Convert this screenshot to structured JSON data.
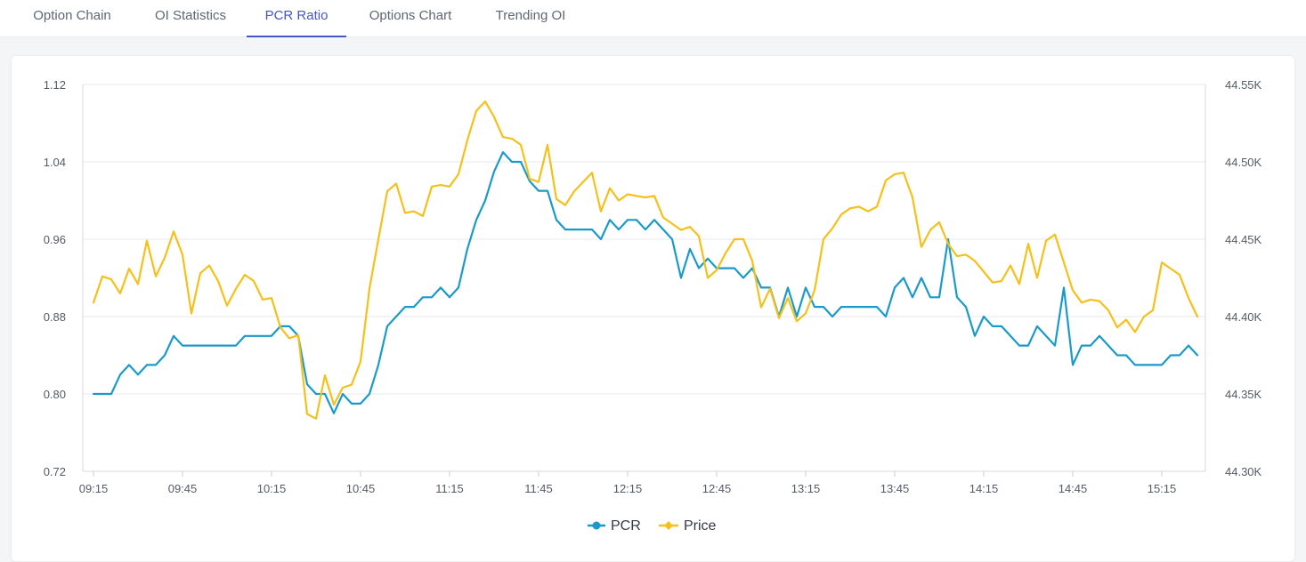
{
  "tabs": [
    {
      "label": "Option Chain",
      "active": false
    },
    {
      "label": "OI Statistics",
      "active": false
    },
    {
      "label": "PCR Ratio",
      "active": true
    },
    {
      "label": "Options Chart",
      "active": false
    },
    {
      "label": "Trending OI",
      "active": false
    }
  ],
  "colors": {
    "pcr": "#1a9ac9",
    "price": "#f5c01a",
    "accent": "#4656c4"
  },
  "chart_data": {
    "type": "line",
    "x": [
      "09:15",
      "09:18",
      "09:21",
      "09:24",
      "09:27",
      "09:30",
      "09:33",
      "09:36",
      "09:39",
      "09:42",
      "09:45",
      "09:48",
      "09:51",
      "09:54",
      "09:57",
      "10:00",
      "10:03",
      "10:06",
      "10:09",
      "10:12",
      "10:15",
      "10:18",
      "10:21",
      "10:24",
      "10:27",
      "10:30",
      "10:33",
      "10:36",
      "10:39",
      "10:42",
      "10:45",
      "10:48",
      "10:51",
      "10:54",
      "10:57",
      "11:00",
      "11:03",
      "11:06",
      "11:09",
      "11:12",
      "11:15",
      "11:18",
      "11:21",
      "11:24",
      "11:27",
      "11:30",
      "11:33",
      "11:36",
      "11:39",
      "11:42",
      "11:45",
      "11:48",
      "11:51",
      "11:54",
      "11:57",
      "12:00",
      "12:03",
      "12:06",
      "12:09",
      "12:12",
      "12:15",
      "12:18",
      "12:21",
      "12:24",
      "12:27",
      "12:30",
      "12:33",
      "12:36",
      "12:39",
      "12:42",
      "12:45",
      "12:48",
      "12:51",
      "12:54",
      "12:57",
      "13:00",
      "13:03",
      "13:06",
      "13:09",
      "13:12",
      "13:15",
      "13:18",
      "13:21",
      "13:24",
      "13:27",
      "13:30",
      "13:33",
      "13:36",
      "13:39",
      "13:42",
      "13:45",
      "13:48",
      "13:51",
      "13:54",
      "13:57",
      "14:00",
      "14:03",
      "14:06",
      "14:09",
      "14:12",
      "14:15",
      "14:18",
      "14:21",
      "14:24",
      "14:27",
      "14:30",
      "14:33",
      "14:36",
      "14:39",
      "14:42",
      "14:45",
      "14:48",
      "14:51",
      "14:54",
      "14:57",
      "15:00",
      "15:03",
      "15:06",
      "15:09",
      "15:12",
      "15:15",
      "15:18",
      "15:21",
      "15:24",
      "15:27"
    ],
    "x_ticks": [
      "09:15",
      "09:45",
      "10:15",
      "10:45",
      "11:15",
      "11:45",
      "12:15",
      "12:45",
      "13:15",
      "13:45",
      "14:15",
      "14:45",
      "15:15"
    ],
    "series": [
      {
        "name": "PCR",
        "axis": "left",
        "values": [
          0.8,
          0.8,
          0.8,
          0.82,
          0.83,
          0.82,
          0.83,
          0.83,
          0.84,
          0.86,
          0.85,
          0.85,
          0.85,
          0.85,
          0.85,
          0.85,
          0.85,
          0.86,
          0.86,
          0.86,
          0.86,
          0.87,
          0.87,
          0.86,
          0.81,
          0.8,
          0.8,
          0.78,
          0.8,
          0.79,
          0.79,
          0.8,
          0.83,
          0.87,
          0.88,
          0.89,
          0.89,
          0.9,
          0.9,
          0.91,
          0.9,
          0.91,
          0.95,
          0.98,
          1.0,
          1.03,
          1.05,
          1.04,
          1.04,
          1.02,
          1.01,
          1.01,
          0.98,
          0.97,
          0.97,
          0.97,
          0.97,
          0.96,
          0.98,
          0.97,
          0.98,
          0.98,
          0.97,
          0.98,
          0.97,
          0.96,
          0.92,
          0.95,
          0.93,
          0.94,
          0.93,
          0.93,
          0.93,
          0.92,
          0.93,
          0.91,
          0.91,
          0.88,
          0.91,
          0.88,
          0.91,
          0.89,
          0.89,
          0.88,
          0.89,
          0.89,
          0.89,
          0.89,
          0.89,
          0.88,
          0.91,
          0.92,
          0.9,
          0.92,
          0.9,
          0.9,
          0.96,
          0.9,
          0.89,
          0.86,
          0.88,
          0.87,
          0.87,
          0.86,
          0.85,
          0.85,
          0.87,
          0.86,
          0.85,
          0.91,
          0.83,
          0.85,
          0.85,
          0.86,
          0.85,
          0.84,
          0.84,
          0.83,
          0.83,
          0.83,
          0.83,
          0.84,
          0.84,
          0.85,
          0.84
        ]
      },
      {
        "name": "Price",
        "axis": "right",
        "values": [
          44409,
          44426,
          44424,
          44415,
          44431,
          44421,
          44449,
          44426,
          44438,
          44455,
          44440,
          44402,
          44428,
          44433,
          44423,
          44407,
          44418,
          44427,
          44423,
          44411,
          44412,
          44393,
          44386,
          44388,
          44337,
          44334,
          44362,
          44343,
          44354,
          44356,
          44371,
          44418,
          44450,
          44481,
          44486,
          44467,
          44468,
          44465,
          44484,
          44485,
          44484,
          44492,
          44514,
          44533,
          44539,
          44529,
          44516,
          44515,
          44511,
          44489,
          44487,
          44511,
          44476,
          44472,
          44481,
          44487,
          44493,
          44468,
          44483,
          44475,
          44479,
          44478,
          44477,
          44478,
          44464,
          44460,
          44456,
          44458,
          44452,
          44425,
          44430,
          44441,
          44450,
          44450,
          44436,
          44406,
          44418,
          44399,
          44412,
          44397,
          44402,
          44417,
          44450,
          44457,
          44466,
          44470,
          44471,
          44468,
          44471,
          44488,
          44492,
          44493,
          44477,
          44445,
          44456,
          44461,
          44447,
          44439,
          44440,
          44436,
          44429,
          44422,
          44423,
          44433,
          44421,
          44447,
          44425,
          44449,
          44453,
          44435,
          44417,
          44409,
          44411,
          44410,
          44404,
          44393,
          44398,
          44390,
          44400,
          44404,
          44435,
          44431,
          44427,
          44412,
          44400
        ]
      }
    ],
    "y_left": {
      "min": 0.72,
      "max": 1.12,
      "ticks": [
        0.72,
        0.8,
        0.88,
        0.96,
        1.04,
        1.12
      ]
    },
    "y_right": {
      "min": 44300,
      "max": 44550,
      "ticks": [
        44300,
        44350,
        44400,
        44450,
        44500,
        44550
      ]
    },
    "y_left_tick_labels": [
      "0.72",
      "0.80",
      "0.88",
      "0.96",
      "1.04",
      "1.12"
    ],
    "y_right_tick_labels": [
      "44.30K",
      "44.35K",
      "44.40K",
      "44.45K",
      "44.50K",
      "44.55K"
    ],
    "grid": true,
    "legend_position": "bottom-center"
  }
}
